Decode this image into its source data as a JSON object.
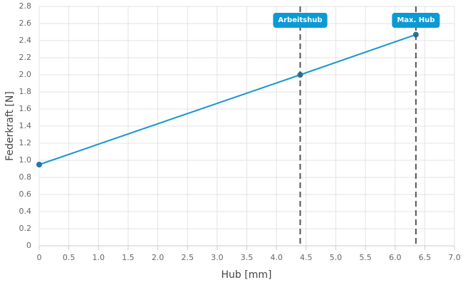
{
  "chart_data": {
    "type": "line",
    "xlabel": "Hub [mm]",
    "ylabel": "Federkraft [N]",
    "x": [
      0,
      4.4,
      6.35
    ],
    "series": [
      {
        "color": "#1a95d0",
        "values": [
          0.95,
          2.0,
          2.47
        ]
      }
    ],
    "xlim": [
      0,
      7
    ],
    "ylim": [
      0,
      2.8
    ],
    "xticks": [
      0,
      0.5,
      {
        "value": 1,
        "label": "1.0"
      },
      1.5,
      {
        "value": 2,
        "label": "2.0"
      },
      2.5,
      {
        "value": 3,
        "label": "3.0"
      },
      3.5,
      {
        "value": 4,
        "label": "4.0"
      },
      4.5,
      {
        "value": 5,
        "label": "5.0"
      },
      5.5,
      {
        "value": 6,
        "label": "6.0"
      },
      6.5,
      {
        "value": 7,
        "label": "7.0"
      }
    ],
    "yticks": [
      0,
      0.2,
      0.4,
      0.6,
      0.8,
      {
        "value": 1,
        "label": "1.0"
      },
      1.2,
      1.4,
      1.6,
      1.8,
      {
        "value": 2,
        "label": "2.0"
      },
      2.2,
      2.4,
      2.6,
      2.8
    ],
    "annotations": [
      {
        "x": 4.4,
        "label": "Arbeitshub"
      },
      {
        "x": 6.35,
        "label": "Max. Hub"
      }
    ],
    "grid": true
  }
}
